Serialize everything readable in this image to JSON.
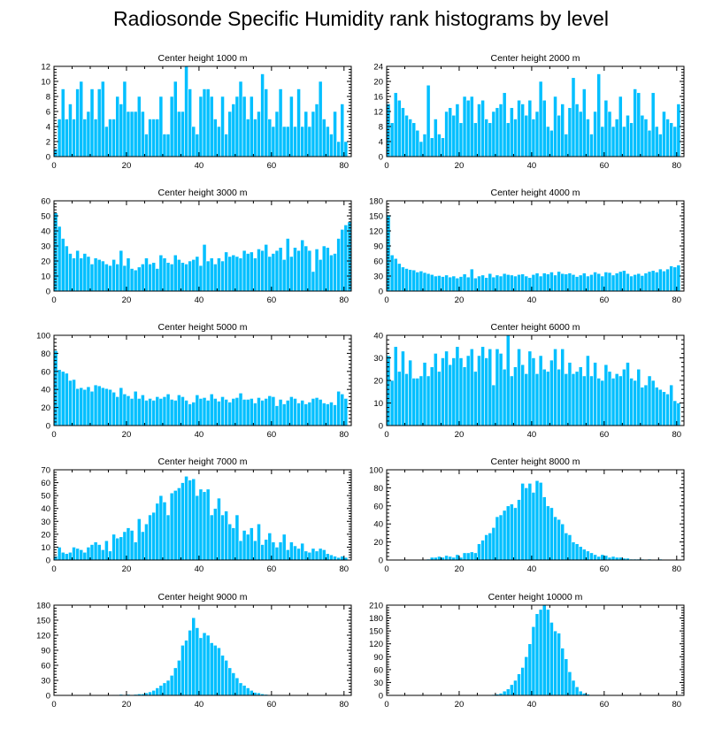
{
  "title": "Radiosonde Specific Humidity rank histograms by level",
  "colors": {
    "bar": "#00bfff",
    "bar_edge": "#ffffff",
    "axis": "#000000"
  },
  "chart_data": [
    {
      "type": "bar",
      "title": "Center height 1000 m",
      "xlim": [
        0,
        82
      ],
      "ylim": [
        0,
        12
      ],
      "xticks": [
        0,
        20,
        40,
        60,
        80
      ],
      "yticks": [
        0,
        2,
        4,
        6,
        8,
        10,
        12
      ],
      "grid": false,
      "values": [
        1,
        5,
        9,
        5,
        7,
        5,
        9,
        10,
        5,
        6,
        9,
        5,
        9,
        10,
        4,
        5,
        5,
        8,
        7,
        10,
        6,
        6,
        6,
        8,
        6,
        3,
        5,
        5,
        5,
        8,
        3,
        3,
        8,
        10,
        6,
        6,
        12,
        9,
        4,
        3,
        8,
        9,
        9,
        8,
        5,
        4,
        8,
        3,
        6,
        7,
        8,
        10,
        8,
        5,
        8,
        5,
        6,
        11,
        9,
        5,
        4,
        6,
        9,
        4,
        4,
        8,
        4,
        9,
        4,
        6,
        4,
        6,
        7,
        10,
        5,
        4,
        3,
        6,
        2,
        7,
        2
      ],
      "x_start": 0
    },
    {
      "type": "bar",
      "title": "Center height 2000 m",
      "xlim": [
        0,
        82
      ],
      "ylim": [
        0,
        24
      ],
      "xticks": [
        0,
        20,
        40,
        60,
        80
      ],
      "yticks": [
        0,
        4,
        8,
        12,
        16,
        20,
        24
      ],
      "grid": false,
      "values": [
        14,
        9,
        17,
        15,
        13,
        11,
        10,
        9,
        7,
        4,
        6,
        19,
        5,
        10,
        6,
        5,
        12,
        13,
        11,
        14,
        9,
        16,
        15,
        16,
        9,
        14,
        15,
        10,
        9,
        12,
        13,
        14,
        17,
        9,
        13,
        10,
        15,
        14,
        11,
        15,
        10,
        12,
        20,
        15,
        8,
        7,
        16,
        11,
        14,
        6,
        13,
        21,
        14,
        12,
        18,
        10,
        6,
        12,
        22,
        8,
        15,
        12,
        8,
        10,
        16,
        8,
        11,
        9,
        18,
        17,
        11,
        10,
        7,
        17,
        8,
        6,
        12,
        10,
        9,
        8,
        14
      ],
      "x_start": 0
    },
    {
      "type": "bar",
      "title": "Center height 3000 m",
      "xlim": [
        0,
        82
      ],
      "ylim": [
        0,
        60
      ],
      "xticks": [
        0,
        20,
        40,
        60,
        80
      ],
      "yticks": [
        0,
        10,
        20,
        30,
        40,
        50,
        60
      ],
      "grid": false,
      "values": [
        52,
        43,
        35,
        30,
        25,
        22,
        27,
        22,
        25,
        23,
        18,
        22,
        21,
        20,
        18,
        17,
        21,
        18,
        27,
        17,
        22,
        15,
        14,
        16,
        18,
        22,
        18,
        19,
        15,
        24,
        22,
        19,
        18,
        24,
        21,
        19,
        18,
        20,
        21,
        23,
        17,
        31,
        20,
        22,
        18,
        22,
        20,
        26,
        23,
        24,
        23,
        22,
        27,
        25,
        26,
        22,
        28,
        27,
        31,
        23,
        25,
        27,
        29,
        21,
        35,
        23,
        29,
        27,
        34,
        30,
        27,
        13,
        28,
        21,
        30,
        29,
        24,
        25,
        35,
        41,
        44,
        46
      ],
      "x_start": 0
    },
    {
      "type": "bar",
      "title": "Center height 4000 m",
      "xlim": [
        0,
        82
      ],
      "ylim": [
        0,
        180
      ],
      "xticks": [
        0,
        20,
        40,
        60,
        80
      ],
      "yticks": [
        0,
        30,
        60,
        90,
        120,
        150,
        180
      ],
      "grid": false,
      "values": [
        152,
        72,
        65,
        55,
        48,
        45,
        43,
        42,
        38,
        40,
        37,
        35,
        33,
        30,
        31,
        29,
        32,
        28,
        30,
        26,
        29,
        34,
        28,
        44,
        26,
        30,
        32,
        27,
        35,
        28,
        32,
        30,
        35,
        33,
        32,
        30,
        33,
        34,
        30,
        27,
        33,
        36,
        30,
        36,
        34,
        38,
        32,
        39,
        35,
        34,
        36,
        33,
        29,
        32,
        36,
        30,
        33,
        38,
        35,
        30,
        38,
        37,
        32,
        36,
        39,
        41,
        35,
        30,
        33,
        35,
        31,
        36,
        39,
        41,
        38,
        44,
        40,
        44,
        50,
        48,
        52
      ],
      "x_start": 0
    },
    {
      "type": "bar",
      "title": "Center height 5000 m",
      "xlim": [
        0,
        82
      ],
      "ylim": [
        0,
        100
      ],
      "xticks": [
        0,
        20,
        40,
        60,
        80
      ],
      "yticks": [
        0,
        20,
        40,
        60,
        80,
        100
      ],
      "grid": false,
      "values": [
        83,
        62,
        60,
        58,
        50,
        51,
        41,
        42,
        40,
        43,
        38,
        45,
        44,
        42,
        41,
        40,
        37,
        32,
        42,
        35,
        33,
        30,
        38,
        30,
        34,
        28,
        30,
        28,
        32,
        30,
        32,
        35,
        29,
        28,
        34,
        32,
        28,
        24,
        26,
        34,
        30,
        31,
        28,
        35,
        30,
        27,
        32,
        29,
        26,
        30,
        31,
        36,
        29,
        29,
        30,
        25,
        31,
        28,
        30,
        33,
        32,
        22,
        29,
        24,
        28,
        32,
        30,
        25,
        28,
        24,
        26,
        30,
        31,
        29,
        25,
        24,
        26,
        23,
        38,
        35,
        30
      ],
      "x_start": 0
    },
    {
      "type": "bar",
      "title": "Center height 6000 m",
      "xlim": [
        0,
        82
      ],
      "ylim": [
        0,
        40
      ],
      "xticks": [
        0,
        20,
        40,
        60,
        80
      ],
      "yticks": [
        0,
        10,
        20,
        30,
        40
      ],
      "grid": false,
      "values": [
        31,
        20,
        35,
        24,
        33,
        23,
        29,
        21,
        21,
        22,
        28,
        22,
        26,
        32,
        24,
        30,
        33,
        27,
        30,
        35,
        30,
        26,
        31,
        34,
        24,
        31,
        35,
        30,
        34,
        18,
        34,
        32,
        25,
        40,
        22,
        26,
        34,
        27,
        23,
        33,
        30,
        23,
        31,
        25,
        24,
        29,
        34,
        25,
        34,
        23,
        28,
        23,
        24,
        26,
        22,
        31,
        22,
        28,
        21,
        20,
        27,
        24,
        21,
        23,
        22,
        25,
        28,
        21,
        20,
        25,
        17,
        18,
        22,
        20,
        17,
        16,
        15,
        14,
        18,
        11,
        10
      ],
      "x_start": 0
    },
    {
      "type": "bar",
      "title": "Center height 7000 m",
      "xlim": [
        0,
        82
      ],
      "ylim": [
        0,
        70
      ],
      "xticks": [
        0,
        20,
        40,
        60,
        80
      ],
      "yticks": [
        0,
        10,
        20,
        30,
        40,
        50,
        60,
        70
      ],
      "grid": false,
      "values": [
        3,
        10,
        6,
        5,
        6,
        10,
        9,
        8,
        6,
        10,
        12,
        14,
        12,
        8,
        15,
        7,
        20,
        17,
        18,
        22,
        25,
        23,
        14,
        32,
        22,
        28,
        35,
        37,
        44,
        50,
        45,
        35,
        52,
        54,
        56,
        60,
        65,
        62,
        63,
        50,
        55,
        53,
        55,
        35,
        40,
        48,
        35,
        38,
        28,
        25,
        35,
        15,
        23,
        20,
        25,
        15,
        28,
        12,
        16,
        21,
        14,
        10,
        14,
        20,
        8,
        14,
        11,
        9,
        13,
        7,
        6,
        9,
        7,
        9,
        8,
        5,
        4,
        3,
        2,
        3,
        2
      ],
      "x_start": 0
    },
    {
      "type": "bar",
      "title": "Center height 8000 m",
      "xlim": [
        0,
        82
      ],
      "ylim": [
        0,
        100
      ],
      "xticks": [
        0,
        20,
        40,
        60,
        80
      ],
      "yticks": [
        0,
        20,
        40,
        60,
        80,
        100
      ],
      "grid": false,
      "values": [
        0,
        0,
        0,
        0,
        0,
        0,
        0,
        0,
        0,
        0,
        0,
        1,
        3,
        3,
        4,
        3,
        5,
        4,
        3,
        6,
        3,
        8,
        8,
        9,
        8,
        18,
        22,
        28,
        30,
        36,
        48,
        50,
        55,
        60,
        62,
        58,
        67,
        85,
        80,
        85,
        75,
        88,
        86,
        70,
        60,
        58,
        48,
        45,
        40,
        30,
        28,
        20,
        18,
        15,
        12,
        10,
        8,
        6,
        4,
        6,
        5,
        3,
        4,
        3,
        3,
        2,
        2,
        1,
        1,
        1,
        1,
        0,
        1,
        0,
        0,
        1,
        0,
        0,
        0,
        0,
        0
      ],
      "x_start": 0
    },
    {
      "type": "bar",
      "title": "Center height 9000 m",
      "xlim": [
        0,
        82
      ],
      "ylim": [
        0,
        180
      ],
      "xticks": [
        0,
        20,
        40,
        60,
        80
      ],
      "yticks": [
        0,
        30,
        60,
        90,
        120,
        150,
        180
      ],
      "grid": false,
      "values": [
        0,
        0,
        0,
        0,
        0,
        0,
        0,
        0,
        0,
        0,
        0,
        0,
        0,
        0,
        0,
        0,
        1,
        1,
        2,
        1,
        2,
        1,
        2,
        3,
        3,
        5,
        7,
        10,
        15,
        20,
        25,
        30,
        40,
        55,
        70,
        100,
        110,
        130,
        155,
        135,
        115,
        125,
        120,
        105,
        100,
        95,
        80,
        70,
        55,
        45,
        35,
        25,
        20,
        15,
        10,
        6,
        5,
        3,
        2,
        1,
        1,
        1,
        0,
        0,
        0,
        0,
        0,
        0,
        0,
        0,
        0,
        0,
        0,
        0,
        0,
        0,
        0,
        0,
        0,
        0,
        0
      ],
      "x_start": 0
    },
    {
      "type": "bar",
      "title": "Center height 10000 m",
      "xlim": [
        0,
        82
      ],
      "ylim": [
        0,
        210
      ],
      "xticks": [
        0,
        20,
        40,
        60,
        80
      ],
      "yticks": [
        0,
        30,
        60,
        90,
        120,
        150,
        180,
        210
      ],
      "grid": false,
      "values": [
        0,
        0,
        0,
        0,
        0,
        0,
        0,
        0,
        0,
        0,
        0,
        0,
        0,
        0,
        0,
        0,
        0,
        0,
        0,
        0,
        0,
        0,
        0,
        0,
        0,
        0,
        0,
        0,
        1,
        2,
        3,
        5,
        10,
        15,
        25,
        35,
        50,
        65,
        90,
        120,
        160,
        190,
        200,
        210,
        200,
        170,
        150,
        145,
        110,
        85,
        55,
        35,
        20,
        10,
        5,
        3,
        1,
        1,
        0,
        0,
        0,
        0,
        0,
        0,
        0,
        0,
        0,
        0,
        0,
        0,
        0,
        0,
        0,
        0,
        0,
        0,
        0,
        0,
        0,
        0,
        0
      ],
      "x_start": 0
    }
  ]
}
